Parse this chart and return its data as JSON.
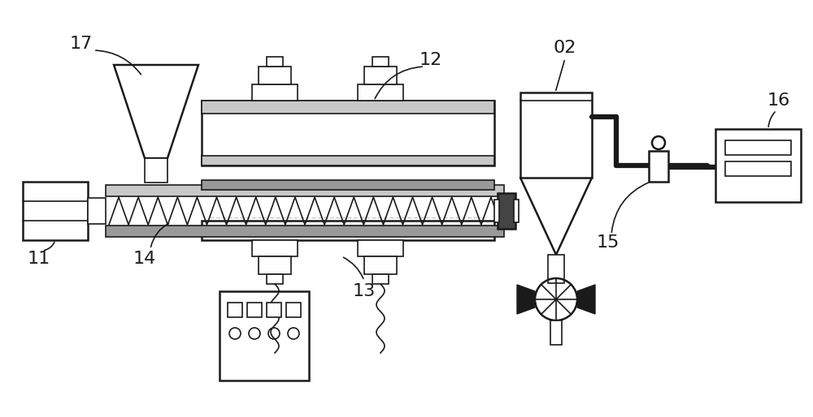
{
  "bg_color": "#ffffff",
  "line_color": "#1a1a1a",
  "gray_light": "#c8c8c8",
  "gray_medium": "#999999",
  "gray_dark": "#444444",
  "label_fontsize": 16,
  "figsize": [
    10.0,
    5.14
  ],
  "dpi": 100
}
